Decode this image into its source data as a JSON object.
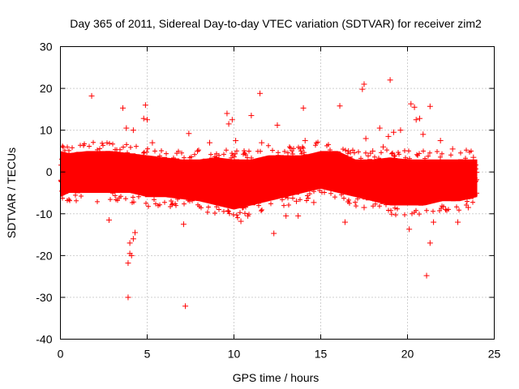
{
  "chart_data": {
    "type": "scatter",
    "title": "Day 365 of 2011, Sidereal Day-to-day VTEC variation (SDTVAR) for receiver zim2",
    "xlabel": "GPS time / hours",
    "ylabel": "SDTVAR / TECUs",
    "xlim": [
      0,
      25
    ],
    "ylim": [
      -40,
      30
    ],
    "x_ticks": [
      0,
      5,
      10,
      15,
      20,
      25
    ],
    "y_ticks": [
      -40,
      -30,
      -20,
      -10,
      0,
      10,
      20,
      30
    ],
    "x_tick_labels": [
      "0",
      "5",
      "10",
      "15",
      "20",
      "25"
    ],
    "y_tick_labels": [
      "-40",
      "-30",
      "-20",
      "-10",
      "0",
      "10",
      "20",
      "30"
    ],
    "grid": true,
    "marker": "plus",
    "color": "#ff0000",
    "series": [
      {
        "name": "SDTVAR",
        "dense_band": [
          {
            "x": 0.0,
            "low": -6,
            "high": 5
          },
          {
            "x": 0.5,
            "low": -5,
            "high": 4.5
          },
          {
            "x": 1.5,
            "low": -5,
            "high": 5
          },
          {
            "x": 3.0,
            "low": -5,
            "high": 5
          },
          {
            "x": 4.0,
            "low": -5,
            "high": 4.5
          },
          {
            "x": 5.0,
            "low": -6,
            "high": 4
          },
          {
            "x": 6.0,
            "low": -6,
            "high": 3.5
          },
          {
            "x": 7.0,
            "low": -6.5,
            "high": 3
          },
          {
            "x": 8.0,
            "low": -7,
            "high": 3
          },
          {
            "x": 9.0,
            "low": -8,
            "high": 3.5
          },
          {
            "x": 10.0,
            "low": -9,
            "high": 3
          },
          {
            "x": 11.0,
            "low": -8,
            "high": 3
          },
          {
            "x": 12.0,
            "low": -7,
            "high": 4
          },
          {
            "x": 13.0,
            "low": -6,
            "high": 4
          },
          {
            "x": 14.0,
            "low": -5,
            "high": 4
          },
          {
            "x": 15.0,
            "low": -4,
            "high": 5
          },
          {
            "x": 16.0,
            "low": -5,
            "high": 5
          },
          {
            "x": 17.0,
            "low": -6,
            "high": 3
          },
          {
            "x": 18.0,
            "low": -7,
            "high": 3
          },
          {
            "x": 19.0,
            "low": -8,
            "high": 3.5
          },
          {
            "x": 20.0,
            "low": -8,
            "high": 3
          },
          {
            "x": 21.0,
            "low": -8,
            "high": 3
          },
          {
            "x": 22.0,
            "low": -7,
            "high": 3
          },
          {
            "x": 23.0,
            "low": -7,
            "high": 3
          },
          {
            "x": 24.0,
            "low": -6,
            "high": 3
          }
        ],
        "points": [
          {
            "x": 1.8,
            "y": 18.2
          },
          {
            "x": 3.6,
            "y": 15.3
          },
          {
            "x": 3.9,
            "y": -30.0
          },
          {
            "x": 3.9,
            "y": -21.8
          },
          {
            "x": 4.0,
            "y": -17.0
          },
          {
            "x": 4.0,
            "y": -19.5
          },
          {
            "x": 4.1,
            "y": -20.0
          },
          {
            "x": 4.2,
            "y": -16.0
          },
          {
            "x": 4.3,
            "y": -14.5
          },
          {
            "x": 3.8,
            "y": 10.5
          },
          {
            "x": 4.2,
            "y": 10.0
          },
          {
            "x": 4.9,
            "y": 16.0
          },
          {
            "x": 4.8,
            "y": 12.8
          },
          {
            "x": 5.0,
            "y": 12.5
          },
          {
            "x": 5.3,
            "y": 7.0
          },
          {
            "x": 2.8,
            "y": -11.5
          },
          {
            "x": 7.2,
            "y": -32.1
          },
          {
            "x": 7.1,
            "y": -12.5
          },
          {
            "x": 7.4,
            "y": 9.2
          },
          {
            "x": 7.9,
            "y": 5.0
          },
          {
            "x": 8.6,
            "y": 7.0
          },
          {
            "x": 9.6,
            "y": 14.0
          },
          {
            "x": 9.7,
            "y": 11.5
          },
          {
            "x": 9.9,
            "y": 12.5
          },
          {
            "x": 10.1,
            "y": 7.5
          },
          {
            "x": 10.4,
            "y": -11.8
          },
          {
            "x": 10.8,
            "y": -10.5
          },
          {
            "x": 11.0,
            "y": 13.5
          },
          {
            "x": 11.5,
            "y": 18.8
          },
          {
            "x": 11.6,
            "y": 7.0
          },
          {
            "x": 12.3,
            "y": -14.7
          },
          {
            "x": 12.5,
            "y": 11.2
          },
          {
            "x": 13.0,
            "y": -10.5
          },
          {
            "x": 13.6,
            "y": -7.0
          },
          {
            "x": 13.7,
            "y": -10.5
          },
          {
            "x": 14.0,
            "y": 15.3
          },
          {
            "x": 14.1,
            "y": 7.5
          },
          {
            "x": 14.6,
            "y": -7.3
          },
          {
            "x": 16.1,
            "y": 15.8
          },
          {
            "x": 16.4,
            "y": -12.0
          },
          {
            "x": 16.6,
            "y": 5.0
          },
          {
            "x": 17.4,
            "y": 19.8
          },
          {
            "x": 17.5,
            "y": 21.0
          },
          {
            "x": 17.5,
            "y": -8.5
          },
          {
            "x": 17.6,
            "y": 8.0
          },
          {
            "x": 18.0,
            "y": 5.0
          },
          {
            "x": 18.4,
            "y": 10.5
          },
          {
            "x": 18.6,
            "y": 6.0
          },
          {
            "x": 18.9,
            "y": 8.5
          },
          {
            "x": 19.0,
            "y": 22.0
          },
          {
            "x": 19.2,
            "y": 9.5
          },
          {
            "x": 19.6,
            "y": 10.0
          },
          {
            "x": 20.1,
            "y": -13.7
          },
          {
            "x": 20.2,
            "y": 16.3
          },
          {
            "x": 20.4,
            "y": 15.5
          },
          {
            "x": 20.5,
            "y": 12.5
          },
          {
            "x": 20.7,
            "y": 12.8
          },
          {
            "x": 20.9,
            "y": 9.0
          },
          {
            "x": 21.1,
            "y": -24.8
          },
          {
            "x": 21.3,
            "y": 15.7
          },
          {
            "x": 21.3,
            "y": -17.0
          },
          {
            "x": 21.5,
            "y": -12.0
          },
          {
            "x": 21.9,
            "y": 7.5
          },
          {
            "x": 22.2,
            "y": -9.0
          },
          {
            "x": 22.6,
            "y": 5.5
          },
          {
            "x": 22.9,
            "y": -12.0
          },
          {
            "x": 23.5,
            "y": -8.5
          },
          {
            "x": 23.8,
            "y": 3.5
          }
        ]
      }
    ]
  }
}
